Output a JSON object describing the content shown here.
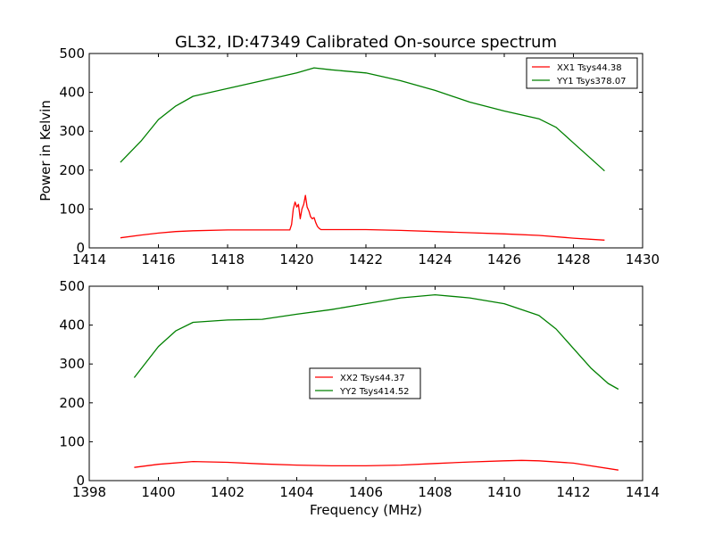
{
  "chart_data": [
    {
      "type": "line",
      "title": "GL32, ID:47349 Calibrated On-source spectrum",
      "xlabel": "",
      "ylabel": "Power in Kelvin",
      "xlim": [
        1414,
        1430
      ],
      "ylim": [
        0,
        500
      ],
      "xticks": [
        "1414",
        "1416",
        "1418",
        "1420",
        "1422",
        "1424",
        "1426",
        "1428",
        "1430"
      ],
      "yticks": [
        "0",
        "100",
        "200",
        "300",
        "400",
        "500"
      ],
      "legend_position": "top-right",
      "series": [
        {
          "name": "XX1 Tsys44.38",
          "color": "#ff0000",
          "x": [
            1414.9,
            1415.5,
            1416.0,
            1416.5,
            1417.0,
            1418.0,
            1419.0,
            1419.8,
            1419.85,
            1419.9,
            1419.95,
            1420.0,
            1420.05,
            1420.1,
            1420.15,
            1420.2,
            1420.25,
            1420.3,
            1420.35,
            1420.4,
            1420.45,
            1420.5,
            1420.55,
            1420.6,
            1420.65,
            1420.7,
            1421.0,
            1422.0,
            1423.0,
            1424.0,
            1425.0,
            1426.0,
            1427.0,
            1428.0,
            1428.9
          ],
          "y": [
            26,
            33,
            38,
            42,
            44,
            46,
            46,
            46,
            60,
            100,
            118,
            105,
            112,
            75,
            100,
            112,
            135,
            105,
            95,
            80,
            75,
            78,
            65,
            55,
            50,
            47,
            47,
            47,
            45,
            42,
            39,
            36,
            32,
            25,
            20
          ]
        },
        {
          "name": "YY1 Tsys378.07",
          "color": "#008000",
          "x": [
            1414.9,
            1415.5,
            1416.0,
            1416.5,
            1417.0,
            1418.0,
            1419.0,
            1420.0,
            1420.5,
            1421.0,
            1422.0,
            1423.0,
            1424.0,
            1425.0,
            1426.0,
            1427.0,
            1427.5,
            1428.0,
            1428.5,
            1428.9
          ],
          "y": [
            220,
            275,
            330,
            365,
            390,
            410,
            430,
            450,
            463,
            458,
            450,
            430,
            405,
            375,
            352,
            332,
            310,
            270,
            230,
            198
          ]
        }
      ]
    },
    {
      "type": "line",
      "title": "",
      "xlabel": "Frequency (MHz)",
      "ylabel": "",
      "xlim": [
        1398,
        1414
      ],
      "ylim": [
        0,
        500
      ],
      "xticks": [
        "1398",
        "1400",
        "1402",
        "1404",
        "1406",
        "1408",
        "1410",
        "1412",
        "1414"
      ],
      "yticks": [
        "0",
        "100",
        "200",
        "300",
        "400",
        "500"
      ],
      "legend_position": "center",
      "series": [
        {
          "name": "XX2 Tsys44.37",
          "color": "#ff0000",
          "x": [
            1399.3,
            1400.0,
            1401.0,
            1402.0,
            1403.0,
            1404.0,
            1405.0,
            1406.0,
            1407.0,
            1408.0,
            1409.0,
            1410.0,
            1410.5,
            1411.0,
            1412.0,
            1413.3
          ],
          "y": [
            34,
            42,
            49,
            47,
            43,
            40,
            38,
            38,
            40,
            44,
            48,
            51,
            52,
            51,
            45,
            27
          ]
        },
        {
          "name": "YY2 Tsys414.52",
          "color": "#008000",
          "x": [
            1399.3,
            1400.0,
            1400.5,
            1401.0,
            1402.0,
            1403.0,
            1404.0,
            1405.0,
            1406.0,
            1407.0,
            1408.0,
            1409.0,
            1410.0,
            1411.0,
            1411.5,
            1412.0,
            1412.5,
            1413.0,
            1413.3
          ],
          "y": [
            265,
            345,
            385,
            407,
            413,
            415,
            428,
            440,
            455,
            470,
            478,
            470,
            455,
            425,
            390,
            340,
            290,
            250,
            235
          ]
        }
      ]
    }
  ],
  "figure": {
    "title": "GL32, ID:47349 Calibrated On-source spectrum",
    "ylabel": "Power in Kelvin",
    "xlabel": "Frequency (MHz)"
  }
}
